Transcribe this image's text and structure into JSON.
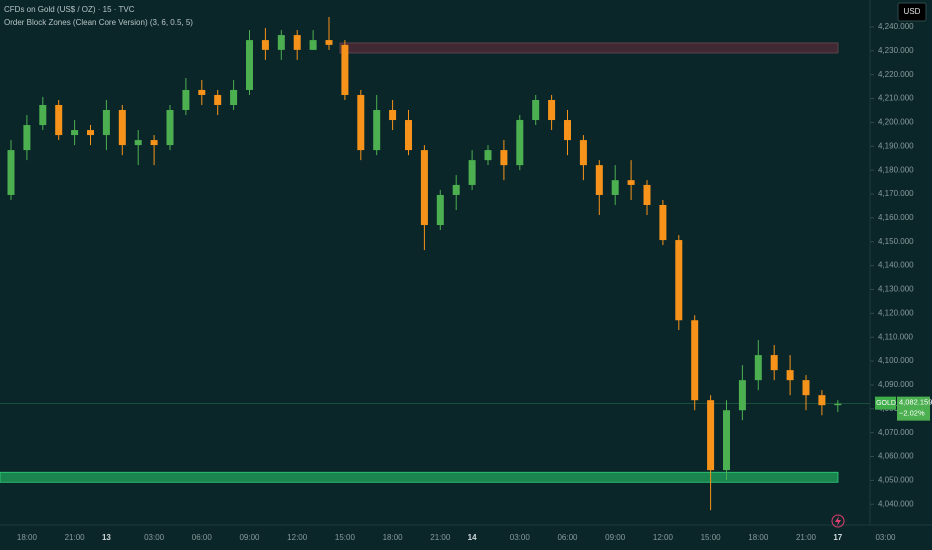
{
  "chart_data": {
    "type": "candlestick",
    "title": "CFDs on Gold (US$ / OZ) · 15 · TVC",
    "subtitle": "Order Block Zones (Clean Core Version) (3, 6, 0.5, 5)",
    "currency": "USD",
    "symbol": "GOLD",
    "last_price": {
      "value": 4082.159,
      "label": "4,082.159"
    },
    "change": "−2.02%",
    "up_color": "#4caf50",
    "down_color": "#f7931a",
    "categories": [
      null,
      "18:00",
      null,
      null,
      "21:00",
      null,
      "13",
      null,
      null,
      "03:00",
      null,
      null,
      "06:00",
      null,
      null,
      "09:00",
      null,
      null,
      "12:00",
      null,
      null,
      "15:00",
      null,
      null,
      "18:00",
      null,
      null,
      "21:00",
      null,
      "14",
      null,
      null,
      "03:00",
      null,
      null,
      "06:00",
      null,
      null,
      "09:00",
      null,
      null,
      "12:00",
      null,
      null,
      "15:00",
      null,
      null,
      "18:00",
      null,
      null,
      "21:00",
      null,
      "17",
      null,
      null,
      "03:00"
    ],
    "open": [
      4169.6,
      4188.4,
      4198.9,
      4207.3,
      4194.7,
      4196.8,
      4194.7,
      4205.2,
      4190.5,
      4192.6,
      4190.5,
      4205.2,
      4213.6,
      4211.5,
      4207.3,
      4213.6,
      4234.5,
      4230.4,
      4236.6,
      4230.4,
      4234.5,
      4232.5,
      4211.5,
      4188.4,
      4205.2,
      4201.0,
      4188.4,
      4157.0,
      4169.6,
      4173.8,
      4184.2,
      4188.4,
      4182.1,
      4201.0,
      4209.4,
      4201.0,
      4192.6,
      4182.1,
      4169.6,
      4175.8,
      4173.8,
      4165.4,
      4150.7,
      4117.1,
      4083.6,
      4054.3,
      4079.4,
      4092.0,
      4102.5,
      4096.2,
      4092.0,
      4085.7,
      4081.5,
      null,
      null,
      null
    ],
    "high": [
      4192.6,
      4203.1,
      4210.7,
      4209.4,
      4201.0,
      4198.9,
      4209.4,
      4207.3,
      4196.8,
      4194.7,
      4207.3,
      4218.6,
      4217.8,
      4213.6,
      4217.8,
      4238.7,
      4239.6,
      4238.7,
      4238.7,
      4238.7,
      4244.2,
      4234.5,
      4213.6,
      4211.5,
      4209.4,
      4205.2,
      4190.5,
      4171.7,
      4177.9,
      4188.4,
      4190.5,
      4192.6,
      4203.1,
      4211.5,
      4211.5,
      4205.2,
      4194.7,
      4184.2,
      4182.1,
      4184.2,
      4175.8,
      4167.5,
      4152.8,
      4119.2,
      4085.7,
      4083.6,
      4098.3,
      4108.8,
      4106.7,
      4102.5,
      4094.1,
      4087.8,
      4083.6,
      null,
      null,
      null
    ],
    "low": [
      4167.5,
      4184.2,
      4196.8,
      4192.6,
      4190.5,
      4190.5,
      4188.4,
      4186.3,
      4182.1,
      4182.1,
      4188.4,
      4203.1,
      4207.3,
      4203.1,
      4205.2,
      4211.5,
      4226.2,
      4226.2,
      4226.2,
      4230.4,
      4230.4,
      4209.4,
      4184.2,
      4186.3,
      4196.8,
      4186.3,
      4146.5,
      4154.9,
      4163.3,
      4171.7,
      4182.1,
      4175.8,
      4180.0,
      4198.9,
      4196.8,
      4186.3,
      4175.8,
      4161.2,
      4165.4,
      4167.5,
      4161.2,
      4148.6,
      4113.0,
      4079.4,
      4037.5,
      4050.1,
      4075.2,
      4087.8,
      4092.0,
      4085.7,
      4079.4,
      4077.3,
      4078.6,
      null,
      null,
      null
    ],
    "close": [
      4188.4,
      4198.9,
      4207.3,
      4194.7,
      4196.8,
      4194.7,
      4205.2,
      4190.5,
      4192.6,
      4190.5,
      4205.2,
      4213.6,
      4211.5,
      4207.3,
      4213.6,
      4234.5,
      4230.4,
      4236.6,
      4230.4,
      4234.5,
      4232.5,
      4211.5,
      4188.4,
      4205.2,
      4201.0,
      4188.4,
      4157.0,
      4169.6,
      4173.8,
      4184.2,
      4188.4,
      4182.1,
      4201.0,
      4209.4,
      4201.0,
      4192.6,
      4182.1,
      4169.6,
      4175.8,
      4173.8,
      4165.4,
      4150.7,
      4117.1,
      4083.6,
      4054.3,
      4079.4,
      4092.0,
      4102.5,
      4096.2,
      4092.0,
      4085.7,
      4081.5,
      4082.159,
      null,
      null,
      null
    ],
    "zones": [
      {
        "top": 4233.3,
        "bottom": 4229.1,
        "color": "#4a2a35"
      },
      {
        "top": 4053.4,
        "bottom": 4049.2,
        "color": "#1f9e5a"
      }
    ],
    "ylim": [
      4031.3,
      4251.3
    ],
    "yticks": [
      {
        "value": 4040,
        "label": "4,040.000"
      },
      {
        "value": 4050,
        "label": "4,050.000"
      },
      {
        "value": 4060,
        "label": "4,060.000"
      },
      {
        "value": 4070,
        "label": "4,070.000"
      },
      {
        "value": 4080,
        "label": "4,080.000"
      },
      {
        "value": 4090,
        "label": "4,090.000"
      },
      {
        "value": 4100,
        "label": "4,100.000"
      },
      {
        "value": 4110,
        "label": "4,110.000"
      },
      {
        "value": 4120,
        "label": "4,120.000"
      },
      {
        "value": 4130,
        "label": "4,130.000"
      },
      {
        "value": 4140,
        "label": "4,140.000"
      },
      {
        "value": 4150,
        "label": "4,150.000"
      },
      {
        "value": 4160,
        "label": "4,160.000"
      },
      {
        "value": 4170,
        "label": "4,170.000"
      },
      {
        "value": 4180,
        "label": "4,180.000"
      },
      {
        "value": 4190,
        "label": "4,190.000"
      },
      {
        "value": 4200,
        "label": "4,200.000"
      },
      {
        "value": 4210,
        "label": "4,210.000"
      },
      {
        "value": 4220,
        "label": "4,220.000"
      },
      {
        "value": 4230,
        "label": "4,230.000"
      },
      {
        "value": 4240,
        "label": "4,240.000"
      }
    ]
  }
}
